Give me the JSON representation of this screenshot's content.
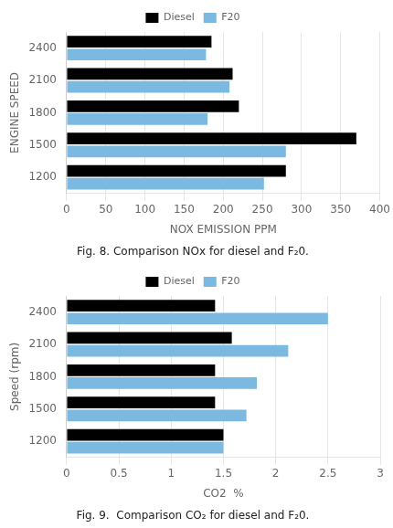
{
  "chart_data": [
    {
      "type": "bar",
      "orientation": "horizontal",
      "title": "Fig. 8. Comparison NOx for diesel and F₂0.",
      "xlabel": "NOX EMISSION PPM",
      "ylabel": "ENGINE SPEED",
      "categories": [
        "1200",
        "1500",
        "1800",
        "2100",
        "2400"
      ],
      "series": [
        {
          "name": "Diesel",
          "color": "#000000",
          "values": [
            280,
            370,
            220,
            212,
            185
          ]
        },
        {
          "name": "F20",
          "color": "#7cb9e0",
          "values": [
            252,
            280,
            180,
            208,
            178
          ]
        }
      ],
      "xlim": [
        0,
        400
      ],
      "xticks": [
        0,
        50,
        100,
        150,
        200,
        250,
        300,
        350,
        400
      ],
      "grid": true,
      "legend": "top"
    },
    {
      "type": "bar",
      "orientation": "horizontal",
      "title": "Fig. 9.  Comparison CO₂ for diesel and F₂0.",
      "xlabel": "CO2  %",
      "ylabel": "Speed (rpm)",
      "categories": [
        "1200",
        "1500",
        "1800",
        "2100",
        "2400"
      ],
      "series": [
        {
          "name": "Diesel",
          "color": "#000000",
          "values": [
            1.5,
            1.42,
            1.42,
            1.58,
            1.42
          ]
        },
        {
          "name": "F20",
          "color": "#7cb9e0",
          "values": [
            1.5,
            1.72,
            1.82,
            2.12,
            2.5
          ]
        }
      ],
      "xlim": [
        0,
        3
      ],
      "xticks": [
        0,
        0.5,
        1,
        1.5,
        2,
        2.5,
        3
      ],
      "grid": true,
      "legend": "top"
    }
  ]
}
